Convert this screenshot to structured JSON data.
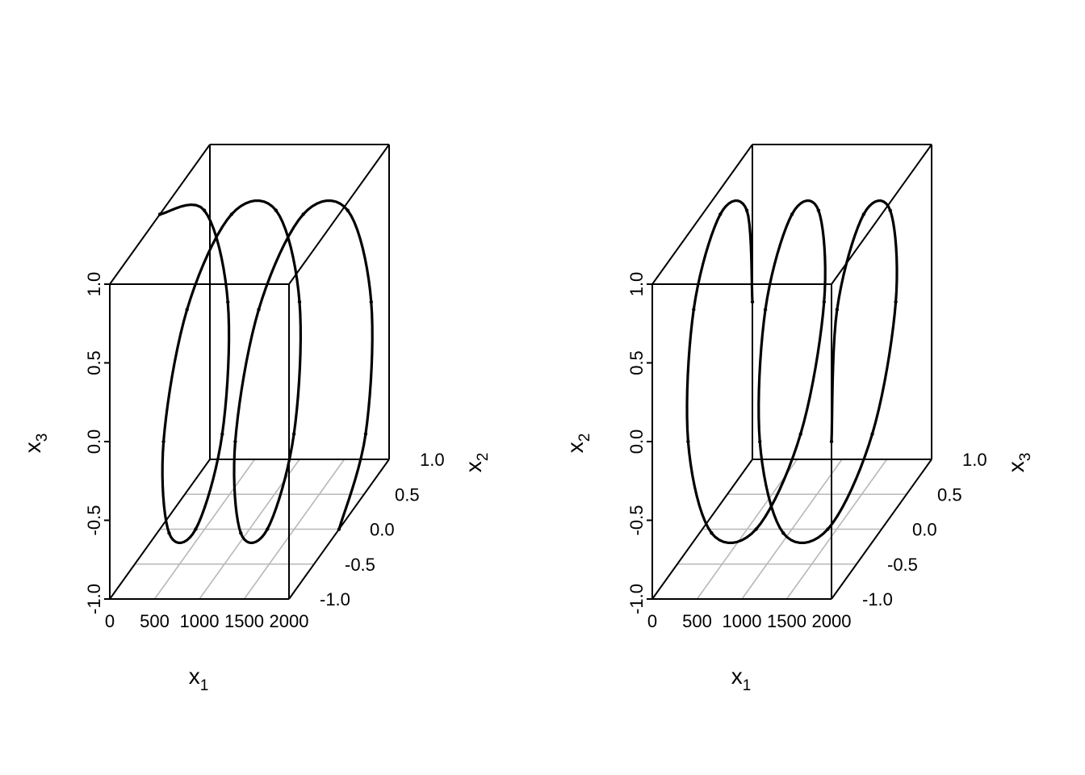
{
  "chart_data": [
    {
      "type": "scatter",
      "projection": "3d-box",
      "title": "",
      "xlabel": "x",
      "xlabel_sub": "1",
      "ylabel": "x",
      "ylabel_sub": "2",
      "zlabel": "x",
      "zlabel_sub": "3",
      "xlim": [
        0,
        2000
      ],
      "ylim": [
        -1,
        1
      ],
      "zlim": [
        -1,
        1
      ],
      "x_ticks": [
        "0",
        "500",
        "1000",
        "1500",
        "2000"
      ],
      "y_ticks": [
        "-1.0",
        "-0.5",
        "0.0",
        "0.5",
        "1.0"
      ],
      "z_ticks": [
        "-1.0",
        "-0.5",
        "0.0",
        "0.5",
        "1.0"
      ],
      "grid": true,
      "series": [
        {
          "marker": "dot",
          "color": "#000000",
          "x": [
            0,
            100,
            200,
            300,
            400,
            500,
            600,
            700,
            800,
            900,
            1000,
            1100,
            1200,
            1300,
            1400,
            1500,
            1600,
            1700,
            1800,
            1900,
            2000
          ],
          "y": [
            0.0,
            0.71,
            1.0,
            0.71,
            0.0,
            -0.71,
            -1.0,
            -0.71,
            0.0,
            0.71,
            1.0,
            0.71,
            0.0,
            -0.71,
            -1.0,
            -0.71,
            0.0,
            0.71,
            1.0,
            0.71,
            0.0
          ],
          "z": [
            1.0,
            0.71,
            0.0,
            -0.71,
            -1.0,
            -0.71,
            0.0,
            0.71,
            1.0,
            0.71,
            0.0,
            -0.71,
            -1.0,
            -0.71,
            0.0,
            0.71,
            1.0,
            0.71,
            0.0,
            -0.71,
            -1.0
          ]
        }
      ]
    },
    {
      "type": "scatter",
      "projection": "3d-box",
      "title": "",
      "xlabel": "x",
      "xlabel_sub": "1",
      "ylabel": "x",
      "ylabel_sub": "3",
      "zlabel": "x",
      "zlabel_sub": "2",
      "xlim": [
        0,
        2000
      ],
      "ylim": [
        -1,
        1
      ],
      "zlim": [
        -1,
        1
      ],
      "x_ticks": [
        "0",
        "500",
        "1000",
        "1500",
        "2000"
      ],
      "y_ticks": [
        "-1.0",
        "-0.5",
        "0.0",
        "0.5",
        "1.0"
      ],
      "z_ticks": [
        "-1.0",
        "-0.5",
        "0.0",
        "0.5",
        "1.0"
      ],
      "grid": true,
      "series": [
        {
          "marker": "dot",
          "color": "#000000",
          "x": [
            0,
            100,
            200,
            300,
            400,
            500,
            600,
            700,
            800,
            900,
            1000,
            1100,
            1200,
            1300,
            1400,
            1500,
            1600,
            1700,
            1800,
            1900,
            2000
          ],
          "y": [
            1.0,
            0.71,
            0.0,
            -0.71,
            -1.0,
            -0.71,
            0.0,
            0.71,
            1.0,
            0.71,
            0.0,
            -0.71,
            -1.0,
            -0.71,
            0.0,
            0.71,
            1.0,
            0.71,
            0.0,
            -0.71,
            -1.0
          ],
          "z": [
            0.0,
            0.71,
            1.0,
            0.71,
            0.0,
            -0.71,
            -1.0,
            -0.71,
            0.0,
            0.71,
            1.0,
            0.71,
            0.0,
            -0.71,
            -1.0,
            -0.71,
            0.0,
            0.71,
            1.0,
            0.71,
            0.0
          ]
        }
      ]
    }
  ]
}
